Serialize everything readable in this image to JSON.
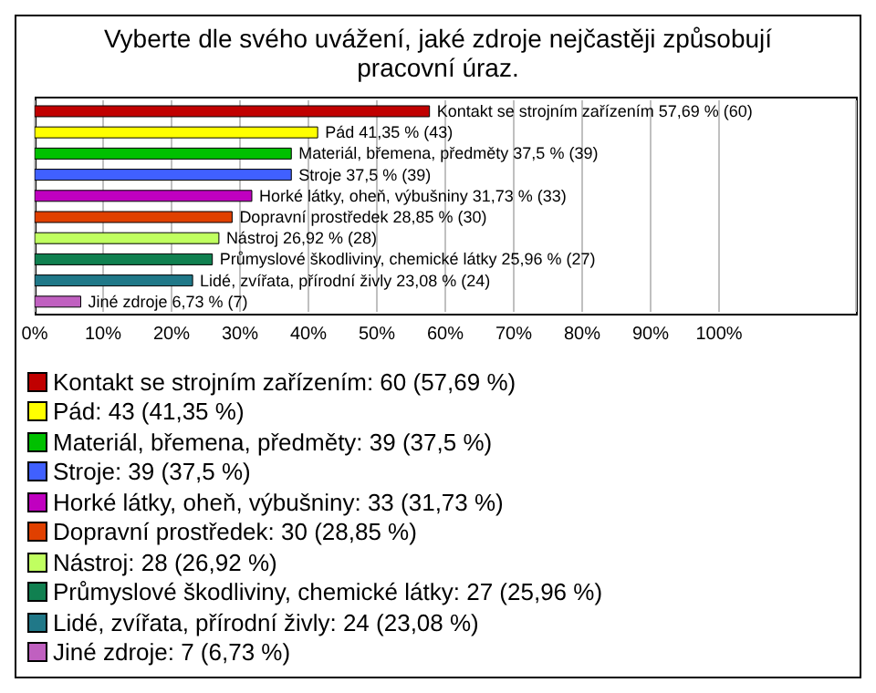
{
  "chart_data": {
    "type": "bar",
    "orientation": "horizontal",
    "title": "Vyberte dle svého uvážení, jaké zdroje nejčastěji způsobují pracovní úraz.",
    "categories": [
      "Kontakt se strojním zařízením",
      "Pád",
      "Materiál, břemena, předměty",
      "Stroje",
      "Horké látky, oheň, výbušniny",
      "Dopravní prostředek",
      "Nástroj",
      "Průmyslové škodliviny, chemické látky",
      "Lidé, zvířata, přírodní živly",
      "Jiné zdroje"
    ],
    "values": [
      57.69,
      41.35,
      37.5,
      37.5,
      31.73,
      28.85,
      26.92,
      25.96,
      23.08,
      6.73
    ],
    "value_labels": [
      "57,69 % (60)",
      "41,35 % (43)",
      "37,5 % (39)",
      "37,5 % (39)",
      "31,73 % (33)",
      "28,85 % (30)",
      "26,92 % (28)",
      "25,96 % (27)",
      "23,08 % (24)",
      "6,73 % (7)"
    ],
    "colors": [
      "#c00000",
      "#ffff00",
      "#00c000",
      "#4060ff",
      "#c000c0",
      "#e04000",
      "#c0ff60",
      "#108050",
      "#207888",
      "#c060c0"
    ],
    "xlim": [
      0,
      120
    ],
    "xticks": [
      {
        "value": 0,
        "label": "0%"
      },
      {
        "value": 10,
        "label": "10%"
      },
      {
        "value": 20,
        "label": "20%"
      },
      {
        "value": 30,
        "label": "30%"
      },
      {
        "value": 40,
        "label": "40%"
      },
      {
        "value": 50,
        "label": "50%"
      },
      {
        "value": 60,
        "label": "60%"
      },
      {
        "value": 70,
        "label": "70%"
      },
      {
        "value": 80,
        "label": "80%"
      },
      {
        "value": 90,
        "label": "90%"
      },
      {
        "value": 100,
        "label": "100%"
      }
    ],
    "grid": "x",
    "tick_labels": "x",
    "annotations": [
      "Kontakt se strojním zařízením: 60 (57,69 %)",
      "Pád: 43 (41,35 %)",
      "Materiál, břemena, předměty: 39 (37,5 %)",
      "Stroje: 39 (37,5 %)",
      "Horké látky, oheň, výbušniny: 33 (31,73 %)",
      "Dopravní prostředek: 30 (28,85 %)",
      "Nástroj: 28 (26,92 %)",
      "Průmyslové škodliviny, chemické látky: 27 (25,96 %)",
      "Lidé, zvířata, přírodní živly: 24 (23,08 %)",
      "Jiné zdroje: 7 (6,73 %)"
    ]
  }
}
